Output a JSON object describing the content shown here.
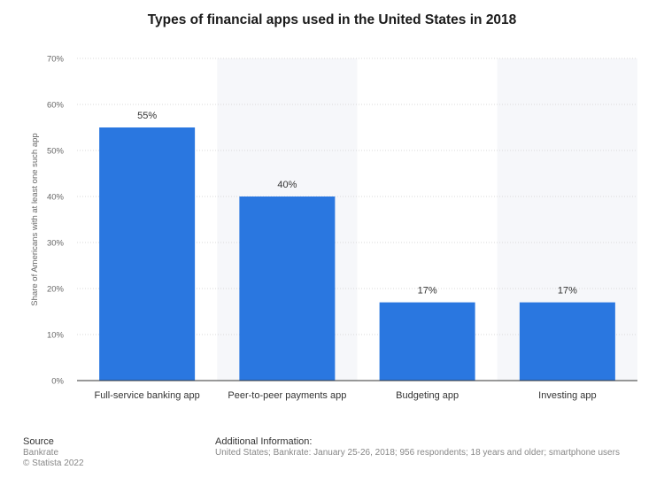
{
  "chart_data": {
    "type": "bar",
    "title": "Types of financial apps used in the United States in 2018",
    "xlabel": "",
    "ylabel": "Share of Americans with at least one such app",
    "categories": [
      "Full-service banking app",
      "Peer-to-peer payments app",
      "Budgeting app",
      "Investing app"
    ],
    "values": [
      55,
      40,
      17,
      17
    ],
    "value_labels": [
      "55%",
      "40%",
      "17%",
      "17%"
    ],
    "ylim": [
      0,
      70
    ],
    "yticks": [
      0,
      10,
      20,
      30,
      40,
      50,
      60,
      70
    ],
    "ytick_labels": [
      "0%",
      "10%",
      "20%",
      "30%",
      "40%",
      "50%",
      "60%",
      "70%"
    ],
    "bar_color": "#2a77e0",
    "grid": true,
    "legend": "none"
  },
  "footer": {
    "source_heading": "Source",
    "source_lines": [
      "Bankrate",
      "© Statista 2022"
    ],
    "info_heading": "Additional Information:",
    "info_text": "United States; Bankrate: January 25-26, 2018; 956 respondents; 18 years and older; smartphone users"
  }
}
